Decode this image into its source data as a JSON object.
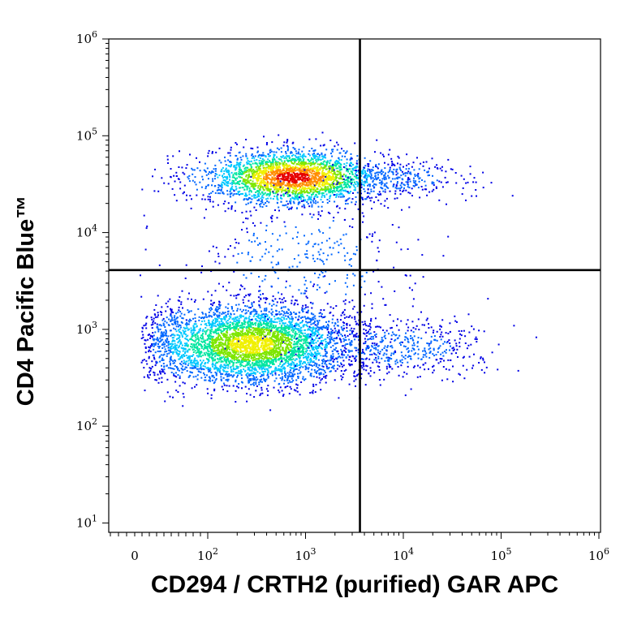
{
  "chart_data": {
    "type": "scatter",
    "xlabel": "CD294 / CRTH2 (purified) GAR APC",
    "ylabel": "CD4 Pacific Blue™",
    "x_scale": "biexponential",
    "y_scale": "log",
    "xlim": [
      -30,
      1000000
    ],
    "ylim": [
      8,
      1000000
    ],
    "x_ticks": [
      {
        "value": 0,
        "base": "0",
        "exp": ""
      },
      {
        "value": 100,
        "base": "10",
        "exp": "2"
      },
      {
        "value": 1000,
        "base": "10",
        "exp": "3"
      },
      {
        "value": 10000,
        "base": "10",
        "exp": "4"
      },
      {
        "value": 100000,
        "base": "10",
        "exp": "5"
      },
      {
        "value": 1000000,
        "base": "10",
        "exp": "6"
      }
    ],
    "y_ticks": [
      {
        "value": 10,
        "base": "10",
        "exp": "1"
      },
      {
        "value": 100,
        "base": "10",
        "exp": "2"
      },
      {
        "value": 1000,
        "base": "10",
        "exp": "3"
      },
      {
        "value": 10000,
        "base": "10",
        "exp": "4"
      },
      {
        "value": 100000,
        "base": "10",
        "exp": "5"
      },
      {
        "value": 1000000,
        "base": "10",
        "exp": "6"
      }
    ],
    "quadrant_gate": {
      "x": 3600,
      "y": 4100
    },
    "populations": [
      {
        "name": "",
        "center_x": 750,
        "center_y": 37000,
        "spread_x_decades": 0.45,
        "spread_y_decades": 0.14,
        "events": 2600,
        "density_peak": "red"
      },
      {
        "name": "",
        "center_x": 280,
        "center_y": 700,
        "spread_x_decades": 0.5,
        "spread_y_decades": 0.2,
        "events": 4200,
        "density_peak": "yellow"
      },
      {
        "name": "",
        "center_x": 9000,
        "center_y": 650,
        "spread_x_decades": 0.45,
        "spread_y_decades": 0.15,
        "events": 500,
        "density_peak": "blue"
      },
      {
        "name": "",
        "center_x": 9000,
        "center_y": 36000,
        "spread_x_decades": 0.35,
        "spread_y_decades": 0.1,
        "events": 260,
        "density_peak": "blue"
      },
      {
        "name": "",
        "center_x": 1000,
        "center_y": 5000,
        "spread_x_decades": 0.6,
        "spread_y_decades": 0.4,
        "events": 350,
        "density_peak": "blue"
      }
    ],
    "density_colors": [
      "#0000e6",
      "#0066ff",
      "#00c8ff",
      "#00e6a0",
      "#7ee600",
      "#f0f000",
      "#ff8c00",
      "#e60000"
    ],
    "grid": false,
    "legend": "none"
  }
}
